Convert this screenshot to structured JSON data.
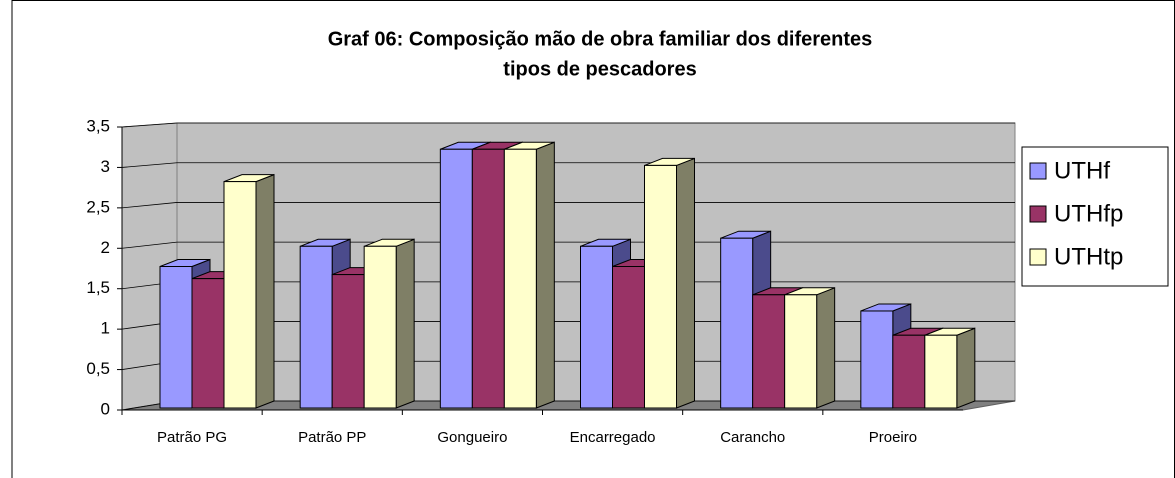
{
  "chart_data": {
    "type": "bar3d",
    "title": [
      "Graf 06: Composição mão de obra familiar dos diferentes",
      "tipos de pescadores"
    ],
    "categories": [
      "Patrão PG",
      "Patrão PP",
      "Gongueiro",
      "Encarregado",
      "Carancho",
      "Proeiro"
    ],
    "series": [
      {
        "name": "UTHf",
        "color": "#9999ff",
        "side": "#4b4b8c",
        "values": [
          1.75,
          2.0,
          3.2,
          2.0,
          2.1,
          1.2
        ]
      },
      {
        "name": "UTHfp",
        "color": "#993366",
        "side": "#4d1a33",
        "values": [
          1.6,
          1.65,
          3.2,
          1.75,
          1.4,
          0.9
        ]
      },
      {
        "name": "UTHtp",
        "color": "#ffffcc",
        "side": "#7f7f66",
        "values": [
          2.8,
          2.0,
          3.2,
          3.0,
          1.4,
          0.9
        ]
      }
    ],
    "ylim": [
      0,
      3.5
    ],
    "yticks": [
      0,
      {
        "value": 0.5,
        "label": "0,5"
      },
      1,
      {
        "value": 1.5,
        "label": "1,5"
      },
      2,
      {
        "value": 2.5,
        "label": "2,5"
      },
      3,
      {
        "value": 3.5,
        "label": "3,5"
      }
    ],
    "grid": true,
    "legend": "right"
  }
}
